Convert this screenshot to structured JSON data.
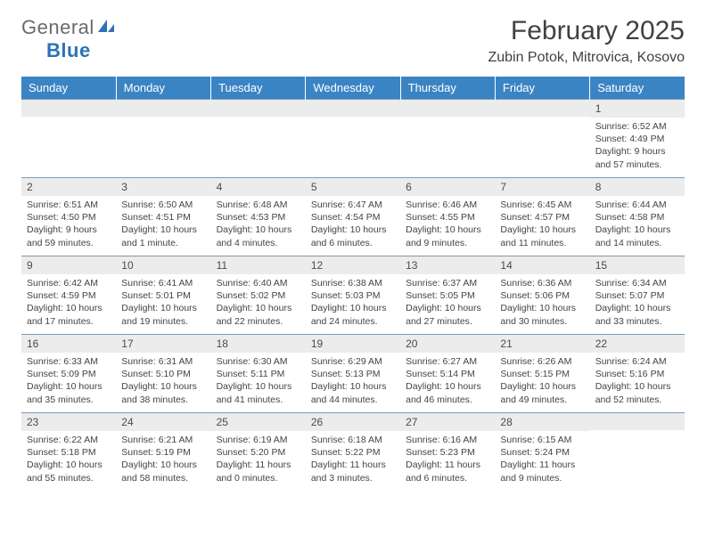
{
  "brand": {
    "part1": "General",
    "part2": "Blue"
  },
  "title": "February 2025",
  "location": "Zubin Potok, Mitrovica, Kosovo",
  "colors": {
    "header_bg": "#3b84c4",
    "header_text": "#ffffff",
    "daynum_bg": "#ececec",
    "rule": "#7a9bb8",
    "logo_gray": "#6a6a6a",
    "logo_blue": "#2c72b8"
  },
  "weekdays": [
    "Sunday",
    "Monday",
    "Tuesday",
    "Wednesday",
    "Thursday",
    "Friday",
    "Saturday"
  ],
  "weeks": [
    [
      {
        "n": "",
        "t": ""
      },
      {
        "n": "",
        "t": ""
      },
      {
        "n": "",
        "t": ""
      },
      {
        "n": "",
        "t": ""
      },
      {
        "n": "",
        "t": ""
      },
      {
        "n": "",
        "t": ""
      },
      {
        "n": "1",
        "t": "Sunrise: 6:52 AM\nSunset: 4:49 PM\nDaylight: 9 hours and 57 minutes."
      }
    ],
    [
      {
        "n": "2",
        "t": "Sunrise: 6:51 AM\nSunset: 4:50 PM\nDaylight: 9 hours and 59 minutes."
      },
      {
        "n": "3",
        "t": "Sunrise: 6:50 AM\nSunset: 4:51 PM\nDaylight: 10 hours and 1 minute."
      },
      {
        "n": "4",
        "t": "Sunrise: 6:48 AM\nSunset: 4:53 PM\nDaylight: 10 hours and 4 minutes."
      },
      {
        "n": "5",
        "t": "Sunrise: 6:47 AM\nSunset: 4:54 PM\nDaylight: 10 hours and 6 minutes."
      },
      {
        "n": "6",
        "t": "Sunrise: 6:46 AM\nSunset: 4:55 PM\nDaylight: 10 hours and 9 minutes."
      },
      {
        "n": "7",
        "t": "Sunrise: 6:45 AM\nSunset: 4:57 PM\nDaylight: 10 hours and 11 minutes."
      },
      {
        "n": "8",
        "t": "Sunrise: 6:44 AM\nSunset: 4:58 PM\nDaylight: 10 hours and 14 minutes."
      }
    ],
    [
      {
        "n": "9",
        "t": "Sunrise: 6:42 AM\nSunset: 4:59 PM\nDaylight: 10 hours and 17 minutes."
      },
      {
        "n": "10",
        "t": "Sunrise: 6:41 AM\nSunset: 5:01 PM\nDaylight: 10 hours and 19 minutes."
      },
      {
        "n": "11",
        "t": "Sunrise: 6:40 AM\nSunset: 5:02 PM\nDaylight: 10 hours and 22 minutes."
      },
      {
        "n": "12",
        "t": "Sunrise: 6:38 AM\nSunset: 5:03 PM\nDaylight: 10 hours and 24 minutes."
      },
      {
        "n": "13",
        "t": "Sunrise: 6:37 AM\nSunset: 5:05 PM\nDaylight: 10 hours and 27 minutes."
      },
      {
        "n": "14",
        "t": "Sunrise: 6:36 AM\nSunset: 5:06 PM\nDaylight: 10 hours and 30 minutes."
      },
      {
        "n": "15",
        "t": "Sunrise: 6:34 AM\nSunset: 5:07 PM\nDaylight: 10 hours and 33 minutes."
      }
    ],
    [
      {
        "n": "16",
        "t": "Sunrise: 6:33 AM\nSunset: 5:09 PM\nDaylight: 10 hours and 35 minutes."
      },
      {
        "n": "17",
        "t": "Sunrise: 6:31 AM\nSunset: 5:10 PM\nDaylight: 10 hours and 38 minutes."
      },
      {
        "n": "18",
        "t": "Sunrise: 6:30 AM\nSunset: 5:11 PM\nDaylight: 10 hours and 41 minutes."
      },
      {
        "n": "19",
        "t": "Sunrise: 6:29 AM\nSunset: 5:13 PM\nDaylight: 10 hours and 44 minutes."
      },
      {
        "n": "20",
        "t": "Sunrise: 6:27 AM\nSunset: 5:14 PM\nDaylight: 10 hours and 46 minutes."
      },
      {
        "n": "21",
        "t": "Sunrise: 6:26 AM\nSunset: 5:15 PM\nDaylight: 10 hours and 49 minutes."
      },
      {
        "n": "22",
        "t": "Sunrise: 6:24 AM\nSunset: 5:16 PM\nDaylight: 10 hours and 52 minutes."
      }
    ],
    [
      {
        "n": "23",
        "t": "Sunrise: 6:22 AM\nSunset: 5:18 PM\nDaylight: 10 hours and 55 minutes."
      },
      {
        "n": "24",
        "t": "Sunrise: 6:21 AM\nSunset: 5:19 PM\nDaylight: 10 hours and 58 minutes."
      },
      {
        "n": "25",
        "t": "Sunrise: 6:19 AM\nSunset: 5:20 PM\nDaylight: 11 hours and 0 minutes."
      },
      {
        "n": "26",
        "t": "Sunrise: 6:18 AM\nSunset: 5:22 PM\nDaylight: 11 hours and 3 minutes."
      },
      {
        "n": "27",
        "t": "Sunrise: 6:16 AM\nSunset: 5:23 PM\nDaylight: 11 hours and 6 minutes."
      },
      {
        "n": "28",
        "t": "Sunrise: 6:15 AM\nSunset: 5:24 PM\nDaylight: 11 hours and 9 minutes."
      },
      {
        "n": "",
        "t": ""
      }
    ]
  ]
}
